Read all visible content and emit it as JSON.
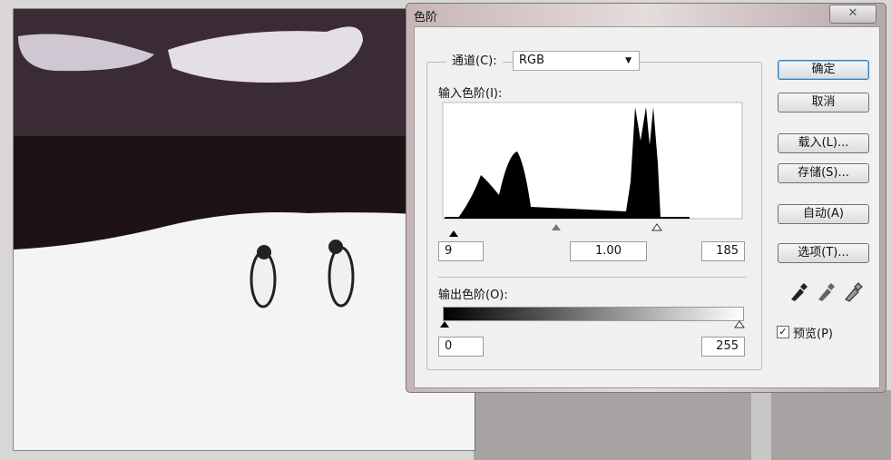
{
  "window": {
    "title": "色阶"
  },
  "channel": {
    "label": "通道(C):",
    "value": "RGB"
  },
  "input_levels": {
    "label": "输入色阶(I):",
    "values": [
      "9",
      "1.00",
      "185"
    ]
  },
  "output_levels": {
    "label": "输出色阶(O):",
    "values": [
      "0",
      "255"
    ]
  },
  "buttons": [
    "确定",
    "取消",
    "载入(L)...",
    "存储(S)...",
    "自动(A)",
    "选项(T)..."
  ],
  "preview": {
    "label": "预览(P)",
    "checked": true
  }
}
